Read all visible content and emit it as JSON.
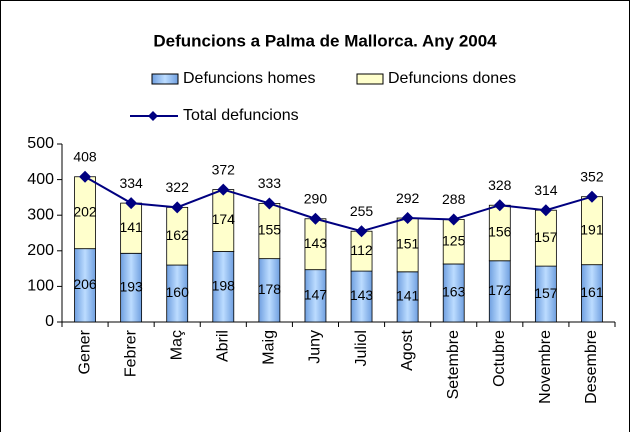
{
  "chart_data": {
    "type": "bar",
    "stacked": true,
    "title": "Defuncions a Palma de Mallorca. Any 2004",
    "categories": [
      "Gener",
      "Febrer",
      "Maç",
      "Abril",
      "Maig",
      "Juny",
      "Juliol",
      "Agost",
      "Setembre",
      "Octubre",
      "Novembre",
      "Desembre"
    ],
    "series": [
      {
        "name": "Defuncions homes",
        "type": "bar",
        "color": "#99ccff",
        "values": [
          206,
          193,
          160,
          198,
          178,
          147,
          143,
          141,
          163,
          172,
          157,
          161
        ]
      },
      {
        "name": "Defuncions dones",
        "type": "bar",
        "color": "#ffffcc",
        "values": [
          202,
          141,
          162,
          174,
          155,
          143,
          112,
          151,
          125,
          156,
          157,
          191
        ]
      },
      {
        "name": "Total defuncions",
        "type": "line",
        "color": "#000080",
        "values": [
          408,
          334,
          322,
          372,
          333,
          290,
          255,
          292,
          288,
          328,
          314,
          352
        ]
      }
    ],
    "ylim": [
      0,
      500
    ],
    "yticks": [
      0,
      100,
      200,
      300,
      400,
      500
    ],
    "grid": false,
    "legend": "top"
  }
}
